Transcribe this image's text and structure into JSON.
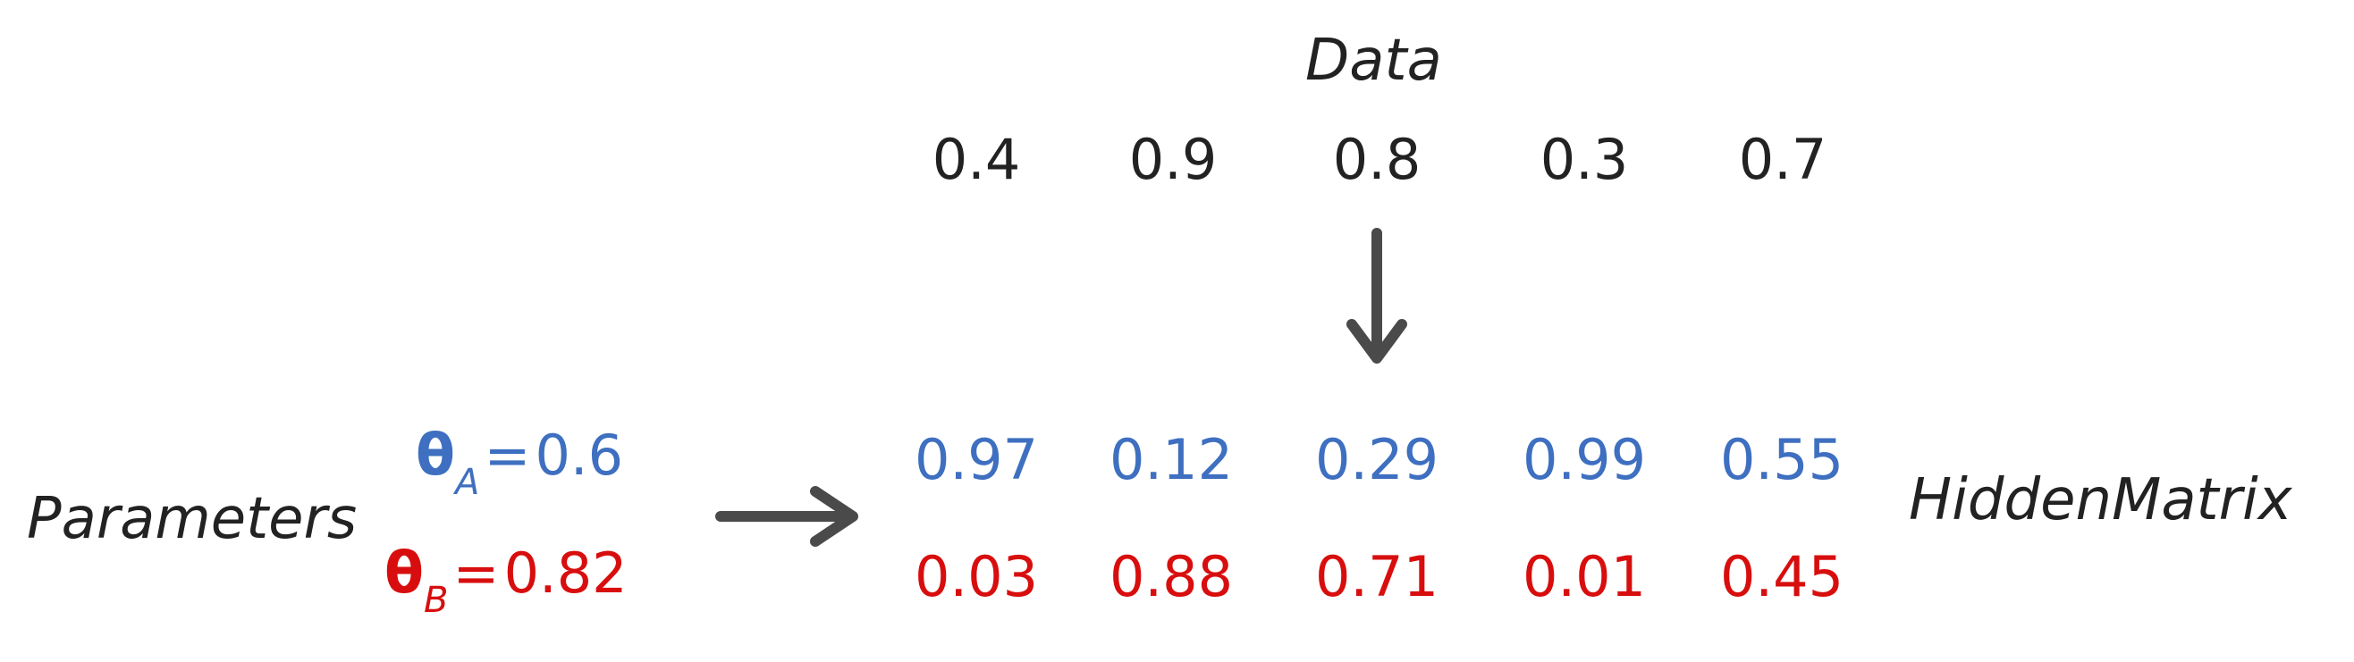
{
  "data": {
    "title": "Data",
    "values": [
      "0.4",
      "0.9",
      "0.8",
      "0.3",
      "0.7"
    ]
  },
  "parameters": {
    "label": "Parameters",
    "theta_a": {
      "symbol": "θ",
      "subscript": "A",
      "equals": "=",
      "value": "0.6"
    },
    "theta_b": {
      "symbol": "θ",
      "subscript": "B",
      "equals": "=",
      "value": "0.82"
    }
  },
  "hidden_matrix": {
    "label": "HiddenMatrix",
    "row_a": [
      "0.97",
      "0.12",
      "0.29",
      "0.99",
      "0.55"
    ],
    "row_b": [
      "0.03",
      "0.88",
      "0.71",
      "0.01",
      "0.45"
    ]
  },
  "colors": {
    "text": "#222222",
    "row_a": "#3e6fc0",
    "row_b": "#d80e0e",
    "arrow": "#4a4a4a"
  },
  "icons": {
    "down_arrow": "down-arrow-icon",
    "right_arrow": "right-arrow-icon"
  }
}
